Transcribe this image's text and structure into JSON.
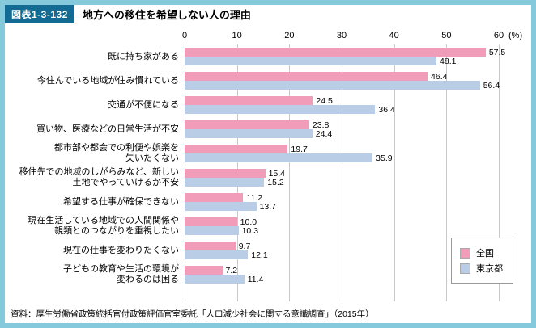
{
  "header": {
    "figure_label": "図表1-3-132",
    "title": "地方への移住を希望しない人の理由"
  },
  "chart_data": {
    "type": "bar",
    "orientation": "horizontal",
    "title": "地方への移住を希望しない人の理由",
    "unit": "(%)",
    "xlim": [
      0,
      60
    ],
    "xticks": [
      0,
      10,
      20,
      30,
      40,
      50,
      60
    ],
    "grid": true,
    "legend_position": "inside-right-bottom",
    "categories": [
      "既に持ち家がある",
      "今住んでいる地域が住み慣れている",
      "交通が不便になる",
      "買い物、医療などの日常生活が不安",
      "都市部や都会での利便や娯楽を\n失いたくない",
      "移住先での地域のしがらみなど、新しい\n土地でやっていけるか不安",
      "希望する仕事が確保できない",
      "現在生活している地域での人間関係や\n親類とのつながりを重視したい",
      "現在の仕事を変わりたくない",
      "子どもの教育や生活の環境が\n変わるのは困る"
    ],
    "series": [
      {
        "name": "全国",
        "color": "#f19cb8",
        "values": [
          57.5,
          46.4,
          24.5,
          23.8,
          19.7,
          15.4,
          11.2,
          10.0,
          9.7,
          7.2
        ]
      },
      {
        "name": "東京都",
        "color": "#b9cee6",
        "values": [
          48.1,
          56.4,
          36.4,
          24.4,
          35.9,
          15.2,
          13.7,
          10.3,
          12.1,
          11.4
        ]
      }
    ]
  },
  "footer": {
    "source": "資料：厚生労働省政策統括官付政策評価官室委託「人口減少社会に関する意識調査」（2015年）"
  },
  "colors": {
    "frame": "#85c9dc",
    "badge_bg": "#136a93",
    "series_national": "#f19cb8",
    "series_tokyo": "#b9cee6"
  }
}
